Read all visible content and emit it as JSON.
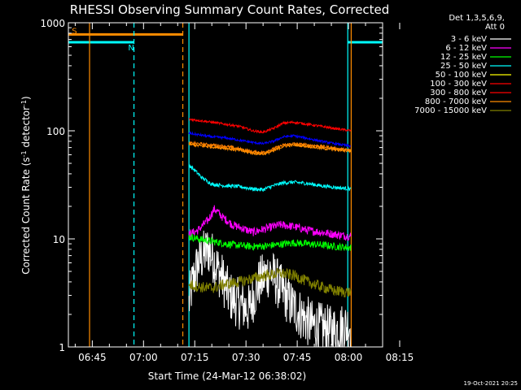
{
  "chart_data": {
    "type": "line",
    "title": "RHESSI Observing Summary Count Rates, Corrected",
    "xlabel": "Start Time (24-Mar-12 06:38:02)",
    "ylabel_parts": [
      "Corrected Count Rate (s",
      "-1",
      " detector",
      "-1",
      ")"
    ],
    "ylog": true,
    "ylim": [
      1,
      1000
    ],
    "xlim_min": [
      38,
      130
    ],
    "x_ticks": [
      {
        "min": 45,
        "label": "06:45"
      },
      {
        "min": 60,
        "label": "07:00"
      },
      {
        "min": 75,
        "label": "07:15"
      },
      {
        "min": 90,
        "label": "07:30"
      },
      {
        "min": 105,
        "label": "07:45"
      },
      {
        "min": 120,
        "label": "08:00"
      },
      {
        "min": 135,
        "label": "08:15"
      }
    ],
    "y_ticks": [
      {
        "value": 1,
        "label": "1"
      },
      {
        "value": 10,
        "label": "10"
      },
      {
        "value": 100,
        "label": "100"
      },
      {
        "value": 1000,
        "label": "1000"
      }
    ],
    "data_window_min": [
      73.3,
      120.8
    ],
    "legend_header": [
      "Det 1,3,5,6,9,",
      "Att 0"
    ],
    "series": [
      {
        "name": "3 - 6 keV",
        "color": "#ffffff",
        "line_color": "#000000",
        "x": [
          73.3,
          76,
          79,
          82,
          85,
          88,
          91,
          94,
          97,
          100,
          103,
          106,
          109,
          112,
          115,
          118,
          120.8
        ],
        "values": [
          2.5,
          6,
          8,
          5,
          3,
          2.5,
          2.2,
          4,
          5,
          3.5,
          2.5,
          2.0,
          1.6,
          1.5,
          1.4,
          1.5,
          1.6
        ],
        "noise": 0.55
      },
      {
        "name": "6 - 12 keV",
        "color": "#ff00ff",
        "x": [
          73.3,
          76,
          79,
          80.8,
          83,
          86,
          89,
          92,
          96,
          100,
          104,
          108,
          112,
          116,
          120.8
        ],
        "values": [
          11,
          12,
          15,
          19,
          16,
          13.5,
          12.5,
          11.5,
          12.5,
          13.5,
          13,
          12,
          11.5,
          11,
          10.5
        ],
        "noise": 0.09
      },
      {
        "name": "12 - 25 keV",
        "color": "#00ff00",
        "x": [
          73.3,
          76,
          80,
          84,
          88,
          92,
          96,
          100,
          104,
          108,
          112,
          116,
          120.8
        ],
        "values": [
          10.5,
          10,
          9.5,
          9,
          8.7,
          8.5,
          8.6,
          8.9,
          9.2,
          9.0,
          8.8,
          8.5,
          8.3
        ],
        "noise": 0.08
      },
      {
        "name": "25 - 50 keV",
        "color": "#00ffff",
        "x": [
          73.3,
          74,
          77,
          80,
          84,
          88,
          92,
          95,
          98,
          101,
          104,
          108,
          112,
          116,
          120.8
        ],
        "values": [
          48,
          46,
          37,
          32,
          31,
          30.5,
          29,
          28.5,
          31,
          33,
          33.5,
          32.5,
          31,
          30,
          29
        ],
        "noise": 0.04
      },
      {
        "name": "50 - 100 keV",
        "color": "#ff7f00",
        "legend_color": "#ffff00",
        "x": [
          73.3,
          76,
          80,
          84,
          88,
          92,
          95,
          98,
          101,
          104,
          108,
          112,
          116,
          120.8
        ],
        "values": [
          77,
          76,
          74,
          72,
          68,
          64,
          63,
          68,
          74,
          76,
          74,
          72,
          69,
          66
        ],
        "noise": 0.03
      },
      {
        "name": "100 - 300 keV",
        "color": "#ff0000",
        "x": [
          73.3,
          76,
          80,
          84,
          88,
          92,
          95,
          98,
          101,
          104,
          108,
          112,
          116,
          120.8
        ],
        "values": [
          128,
          125,
          120,
          115,
          110,
          100,
          97,
          105,
          118,
          120,
          115,
          110,
          105,
          100
        ],
        "noise": 0.025
      },
      {
        "name": "300 - 800 keV",
        "color": "#0000ff",
        "legend_color": "#ff0000",
        "x": [
          73.3,
          76,
          80,
          84,
          88,
          92,
          95,
          98,
          101,
          104,
          108,
          112,
          116,
          120.8
        ],
        "values": [
          95,
          92,
          88,
          86,
          82,
          78,
          76,
          80,
          88,
          90,
          85,
          80,
          76,
          72
        ],
        "noise": 0.025
      },
      {
        "name": "800 - 7000 keV",
        "color": "#ff8c00",
        "x": [
          73.3,
          76,
          80,
          84,
          88,
          92,
          95,
          98,
          101,
          104,
          108,
          112,
          116,
          120.8
        ],
        "values": [
          75,
          73,
          71,
          69,
          66,
          62,
          61,
          65,
          72,
          74,
          72,
          69,
          67,
          65
        ],
        "noise": 0.03
      },
      {
        "name": "7000 - 15000 keV",
        "color": "#808000",
        "x": [
          73.3,
          76,
          80,
          84,
          88,
          92,
          96,
          100,
          104,
          108,
          112,
          116,
          120.8
        ],
        "values": [
          3.8,
          3.6,
          3.5,
          3.8,
          4.0,
          4.3,
          4.6,
          4.8,
          4.6,
          4.0,
          3.6,
          3.3,
          3.2
        ],
        "noise": 0.12
      }
    ],
    "flag_bars": [
      {
        "label": "S",
        "color": "#ff8c00",
        "x_start": 38,
        "x_end": 71.5,
        "level": 780,
        "label_min": 39
      },
      {
        "label": "N",
        "color": "#00ffff",
        "x_start": 38,
        "x_end": 57.2,
        "level": 660,
        "label_min": 55.5
      },
      {
        "label": "",
        "color": "#00ffff",
        "x_start": 119.8,
        "x_end": 130,
        "level": 660,
        "label_min": 0
      }
    ],
    "markers": [
      {
        "min": 44.2,
        "color": "#ff8c00",
        "style": "solid"
      },
      {
        "min": 57.2,
        "color": "#00ffff",
        "style": "dashed"
      },
      {
        "min": 71.5,
        "color": "#ff8c00",
        "style": "dashed"
      },
      {
        "min": 73.3,
        "color": "#00ffff",
        "style": "solid"
      },
      {
        "min": 119.8,
        "color": "#00ffff",
        "style": "solid"
      },
      {
        "min": 120.8,
        "color": "#ff8c00",
        "style": "solid"
      },
      {
        "min": 134.5,
        "color": "#00ffff",
        "style": "dashed"
      }
    ],
    "footer_timestamp": "19-Oct-2021 20:25"
  }
}
